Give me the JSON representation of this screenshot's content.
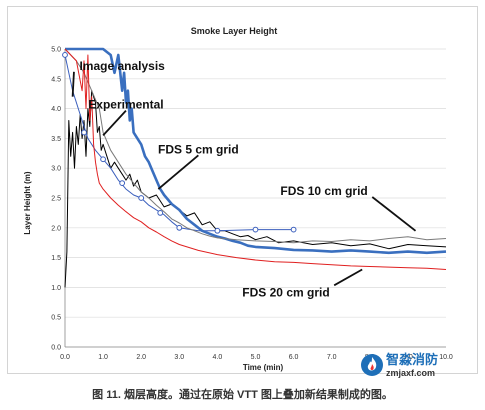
{
  "chart_data": {
    "type": "line",
    "title": "Smoke Layer Height",
    "xlabel": "Time (min)",
    "ylabel": "Layer Height (m)",
    "xlim": [
      0,
      10
    ],
    "ylim": [
      0,
      5
    ],
    "x_ticks": [
      "0.0",
      "1.0",
      "2.0",
      "3.0",
      "4.0",
      "5.0",
      "6.0",
      "7.0",
      "8.0",
      "9.0",
      "10.0"
    ],
    "y_ticks": [
      "0.0",
      "0.5",
      "1.0",
      "1.5",
      "2.0",
      "2.5",
      "3.0",
      "3.5",
      "4.0",
      "4.5",
      "5.0"
    ],
    "grid": "horizontal",
    "series": [
      {
        "name": "Experimental",
        "color": "#000000",
        "width": 1,
        "points": [
          [
            0,
            1.0
          ],
          [
            0.05,
            1.6
          ],
          [
            0.1,
            3.8
          ],
          [
            0.15,
            3.2
          ],
          [
            0.2,
            3.6
          ],
          [
            0.25,
            3.0
          ],
          [
            0.3,
            3.7
          ],
          [
            0.35,
            3.4
          ],
          [
            0.4,
            3.9
          ],
          [
            0.45,
            3.5
          ],
          [
            0.5,
            3.8
          ],
          [
            0.55,
            3.2
          ],
          [
            0.6,
            4.0
          ],
          [
            0.65,
            3.7
          ],
          [
            0.7,
            4.3
          ],
          [
            0.75,
            4.2
          ],
          [
            0.8,
            4.1
          ],
          [
            0.85,
            3.6
          ],
          [
            0.9,
            3.7
          ],
          [
            0.95,
            3.3
          ],
          [
            1.0,
            3.4
          ],
          [
            1.1,
            3.2
          ],
          [
            1.2,
            3.0
          ],
          [
            1.3,
            3.1
          ],
          [
            1.4,
            3.0
          ],
          [
            1.5,
            2.9
          ],
          [
            1.6,
            2.8
          ],
          [
            1.7,
            2.9
          ],
          [
            1.8,
            2.7
          ],
          [
            1.9,
            2.8
          ],
          [
            2.0,
            2.6
          ],
          [
            2.2,
            2.5
          ],
          [
            2.4,
            2.55
          ],
          [
            2.6,
            2.35
          ],
          [
            2.8,
            2.4
          ],
          [
            3.0,
            2.3
          ],
          [
            3.2,
            2.2
          ],
          [
            3.4,
            2.25
          ],
          [
            3.6,
            2.05
          ],
          [
            3.8,
            2.1
          ],
          [
            4.0,
            1.95
          ],
          [
            4.2,
            1.95
          ],
          [
            4.4,
            1.9
          ],
          [
            4.6,
            1.85
          ],
          [
            4.8,
            1.87
          ],
          [
            5.0,
            1.8
          ],
          [
            5.3,
            1.85
          ],
          [
            5.6,
            1.75
          ],
          [
            6.0,
            1.78
          ],
          [
            6.5,
            1.72
          ],
          [
            7.0,
            1.75
          ],
          [
            7.5,
            1.7
          ],
          [
            8.0,
            1.73
          ],
          [
            8.5,
            1.65
          ],
          [
            9.0,
            1.72
          ],
          [
            9.5,
            1.7
          ],
          [
            10.0,
            1.68
          ]
        ]
      },
      {
        "name": "Image analysis",
        "color": "#3b5fbd",
        "width": 1,
        "marker": "circle",
        "points": [
          [
            0,
            4.9
          ],
          [
            0.2,
            4.3
          ],
          [
            0.4,
            3.9
          ],
          [
            0.6,
            3.5
          ],
          [
            0.8,
            3.3
          ],
          [
            1.0,
            3.15
          ],
          [
            1.2,
            3.0
          ],
          [
            1.4,
            2.8
          ],
          [
            1.6,
            2.65
          ],
          [
            1.8,
            2.55
          ],
          [
            2.0,
            2.5
          ],
          [
            2.2,
            2.38
          ],
          [
            2.4,
            2.3
          ],
          [
            2.6,
            2.22
          ],
          [
            2.8,
            2.1
          ],
          [
            3.0,
            2.0
          ],
          [
            3.5,
            1.95
          ],
          [
            4.0,
            1.95
          ],
          [
            5.0,
            1.97
          ],
          [
            6.0,
            1.97
          ]
        ],
        "marker_points": [
          [
            0,
            4.9
          ],
          [
            0.5,
            3.6
          ],
          [
            1.0,
            3.15
          ],
          [
            1.5,
            2.75
          ],
          [
            2.0,
            2.5
          ],
          [
            2.5,
            2.25
          ],
          [
            3.0,
            2.0
          ],
          [
            4.0,
            1.95
          ],
          [
            5.0,
            1.97
          ],
          [
            6.0,
            1.97
          ]
        ]
      },
      {
        "name": "FDS 5 cm grid",
        "color": "#3a6fbf",
        "width": 2.6,
        "points": [
          [
            0,
            5.0
          ],
          [
            0.5,
            5.0
          ],
          [
            1.0,
            5.0
          ],
          [
            1.2,
            4.9
          ],
          [
            1.3,
            4.6
          ],
          [
            1.4,
            4.9
          ],
          [
            1.5,
            4.3
          ],
          [
            1.55,
            4.6
          ],
          [
            1.6,
            4.1
          ],
          [
            1.65,
            4.3
          ],
          [
            1.7,
            3.8
          ],
          [
            1.75,
            4.0
          ],
          [
            1.8,
            3.6
          ],
          [
            1.9,
            3.5
          ],
          [
            2.0,
            3.4
          ],
          [
            2.1,
            3.2
          ],
          [
            2.2,
            3.1
          ],
          [
            2.3,
            2.95
          ],
          [
            2.4,
            2.8
          ],
          [
            2.5,
            2.65
          ],
          [
            2.6,
            2.55
          ],
          [
            2.8,
            2.4
          ],
          [
            3.0,
            2.3
          ],
          [
            3.2,
            2.15
          ],
          [
            3.4,
            2.05
          ],
          [
            3.6,
            1.95
          ],
          [
            3.8,
            1.9
          ],
          [
            4.0,
            1.85
          ],
          [
            4.2,
            1.82
          ],
          [
            4.4,
            1.78
          ],
          [
            4.6,
            1.75
          ],
          [
            4.8,
            1.7
          ],
          [
            5.0,
            1.68
          ],
          [
            5.5,
            1.66
          ],
          [
            6.0,
            1.63
          ],
          [
            6.5,
            1.62
          ],
          [
            7.0,
            1.6
          ],
          [
            7.5,
            1.62
          ],
          [
            8.0,
            1.6
          ],
          [
            8.5,
            1.58
          ],
          [
            9.0,
            1.6
          ],
          [
            9.5,
            1.58
          ],
          [
            10.0,
            1.6
          ]
        ]
      },
      {
        "name": "FDS 10 cm grid",
        "color": "#7a7a7a",
        "width": 1,
        "points": [
          [
            0,
            5.0
          ],
          [
            0.3,
            4.8
          ],
          [
            0.5,
            4.6
          ],
          [
            0.7,
            4.3
          ],
          [
            0.9,
            4.0
          ],
          [
            1.0,
            3.6
          ],
          [
            1.2,
            3.3
          ],
          [
            1.4,
            3.1
          ],
          [
            1.6,
            2.9
          ],
          [
            1.8,
            2.75
          ],
          [
            2.0,
            2.6
          ],
          [
            2.2,
            2.5
          ],
          [
            2.4,
            2.38
          ],
          [
            2.6,
            2.27
          ],
          [
            2.8,
            2.15
          ],
          [
            3.0,
            2.08
          ],
          [
            3.2,
            2.0
          ],
          [
            3.4,
            1.95
          ],
          [
            3.6,
            1.9
          ],
          [
            3.8,
            1.86
          ],
          [
            4.0,
            1.83
          ],
          [
            4.5,
            1.8
          ],
          [
            5.0,
            1.78
          ],
          [
            5.5,
            1.77
          ],
          [
            6.0,
            1.75
          ],
          [
            6.5,
            1.78
          ],
          [
            7.0,
            1.77
          ],
          [
            7.5,
            1.8
          ],
          [
            8.0,
            1.78
          ],
          [
            8.5,
            1.82
          ],
          [
            9.0,
            1.85
          ],
          [
            9.5,
            1.8
          ],
          [
            10.0,
            1.82
          ]
        ]
      },
      {
        "name": "FDS 20 cm grid",
        "color": "#e02020",
        "width": 1,
        "points": [
          [
            0,
            5.0
          ],
          [
            0.3,
            4.8
          ],
          [
            0.45,
            4.3
          ],
          [
            0.5,
            4.8
          ],
          [
            0.55,
            4.0
          ],
          [
            0.6,
            4.9
          ],
          [
            0.65,
            3.8
          ],
          [
            0.7,
            4.2
          ],
          [
            0.75,
            3.4
          ],
          [
            0.8,
            3.1
          ],
          [
            0.85,
            2.9
          ],
          [
            0.9,
            2.75
          ],
          [
            1.0,
            2.65
          ],
          [
            1.2,
            2.5
          ],
          [
            1.4,
            2.38
          ],
          [
            1.6,
            2.27
          ],
          [
            1.8,
            2.17
          ],
          [
            2.0,
            2.1
          ],
          [
            2.2,
            2.0
          ],
          [
            2.4,
            1.93
          ],
          [
            2.6,
            1.85
          ],
          [
            2.8,
            1.78
          ],
          [
            3.0,
            1.72
          ],
          [
            3.5,
            1.62
          ],
          [
            4.0,
            1.55
          ],
          [
            4.5,
            1.5
          ],
          [
            5.0,
            1.46
          ],
          [
            5.5,
            1.43
          ],
          [
            6.0,
            1.42
          ],
          [
            6.5,
            1.4
          ],
          [
            7.0,
            1.38
          ],
          [
            7.5,
            1.36
          ],
          [
            8.0,
            1.35
          ],
          [
            8.5,
            1.34
          ],
          [
            9.0,
            1.33
          ],
          [
            9.5,
            1.32
          ],
          [
            10.0,
            1.3
          ]
        ]
      }
    ],
    "annotations": [
      {
        "text": "Image analysis",
        "tx": 1.5,
        "ty": 4.65,
        "ax": 0.2,
        "ay": 4.2
      },
      {
        "text": "Experimental",
        "tx": 1.6,
        "ty": 4.0,
        "ax": 1.0,
        "ay": 3.55
      },
      {
        "text": "FDS 5 cm grid",
        "tx": 3.5,
        "ty": 3.25,
        "ax": 2.45,
        "ay": 2.65
      },
      {
        "text": "FDS 10 cm grid",
        "tx": 6.8,
        "ty": 2.55,
        "ax": 9.2,
        "ay": 1.95
      },
      {
        "text": "FDS 20 cm grid",
        "tx": 5.8,
        "ty": 0.85,
        "ax": 7.8,
        "ay": 1.3
      }
    ]
  },
  "caption": "图 11. 烟层高度。通过在原始 VTT 图上叠加新结果制成的图。",
  "watermark": {
    "name": "智淼消防",
    "url": "zmjaxf.com"
  }
}
